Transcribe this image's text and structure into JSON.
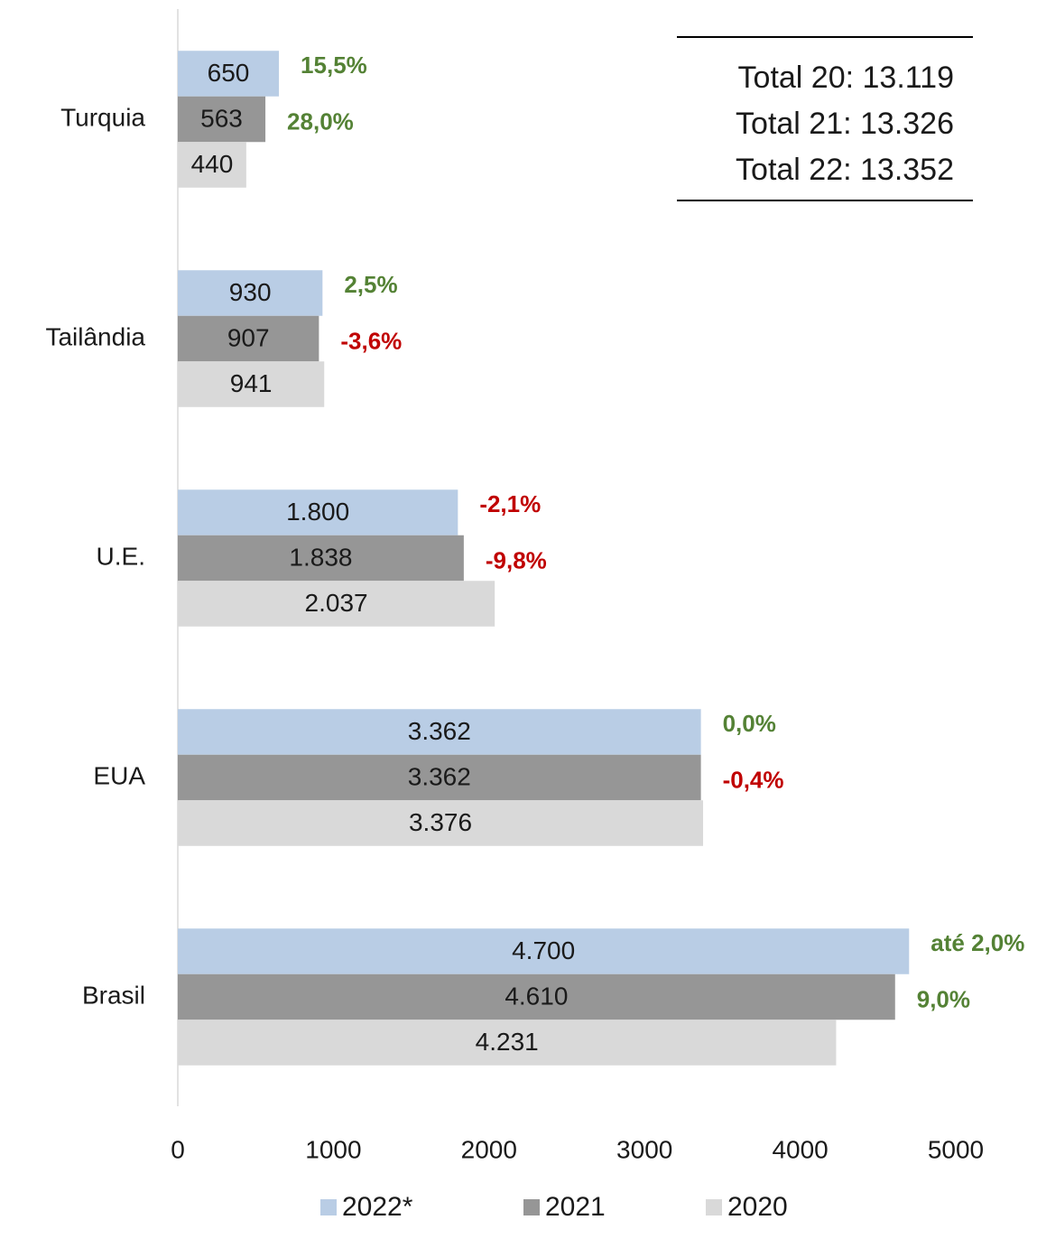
{
  "chart_data": {
    "type": "hbar",
    "categories": [
      "Turquia",
      "Tailândia",
      "U.E.",
      "EUA",
      "Brasil"
    ],
    "series": [
      {
        "name": "2022*",
        "color": "#b9cde5",
        "values": [
          650,
          930,
          1800,
          3362,
          4700
        ],
        "value_labels": [
          "650",
          "930",
          "1.800",
          "3.362",
          "4.700"
        ],
        "change_labels": [
          "15,5%",
          "2,5%",
          "-2,1%",
          "0,0%",
          "até 2,0%"
        ],
        "change_colors": [
          "#548235",
          "#548235",
          "#c00000",
          "#548235",
          "#548235"
        ]
      },
      {
        "name": "2021",
        "color": "#969696",
        "values": [
          563,
          907,
          1838,
          3362,
          4610
        ],
        "value_labels": [
          "563",
          "907",
          "1.838",
          "3.362",
          "4.610"
        ],
        "change_labels": [
          "28,0%",
          "-3,6%",
          "-9,8%",
          "-0,4%",
          "9,0%"
        ],
        "change_colors": [
          "#548235",
          "#c00000",
          "#c00000",
          "#c00000",
          "#548235"
        ]
      },
      {
        "name": "2020",
        "color": "#d9d9d9",
        "values": [
          440,
          941,
          2037,
          3376,
          4231
        ],
        "value_labels": [
          "440",
          "941",
          "2.037",
          "3.376",
          "4.231"
        ]
      }
    ],
    "xlim": [
      0,
      5000
    ],
    "xticks": [
      0,
      1000,
      2000,
      3000,
      4000,
      5000
    ],
    "totals": [
      "Total 20: 13.119",
      "Total 21: 13.326",
      "Total 22: 13.352"
    ],
    "legend": "bottom"
  }
}
